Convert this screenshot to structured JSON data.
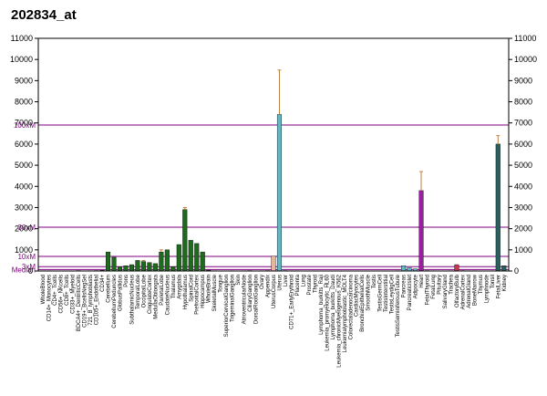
{
  "title": "202834_at",
  "chart_data": {
    "type": "bar",
    "ylim": [
      0,
      11000
    ],
    "yticks": [
      0,
      1000,
      2000,
      3000,
      4000,
      5000,
      6000,
      7000,
      8000,
      9000,
      10000,
      11000
    ],
    "ytick_labels_left": [
      "0",
      "1000",
      "2000",
      "3000",
      "4000",
      "5000",
      "6000",
      "7000",
      "8000",
      "9000",
      "10000",
      "11000"
    ],
    "ytick_labels_right": [
      "0",
      "1000",
      "2000",
      "3000",
      "4000",
      "5000",
      "6000",
      "7000",
      "8000",
      "9000",
      "10000",
      "11000"
    ],
    "reference_lines": [
      {
        "label": "100xM",
        "value": 6900
      },
      {
        "label": "30xM",
        "value": 2070
      },
      {
        "label": "10xM",
        "value": 690
      },
      {
        "label": "3xM",
        "value": 207
      },
      {
        "label": "Median",
        "value": 69
      }
    ],
    "categories": [
      "WholeBlood",
      "CD14+_Monocytes",
      "CD4+_Tcells",
      "CD56+_NKcells",
      "CD8+_Tcells",
      "CD33+_Myeloid",
      "BDCA4+_DentriticCells",
      "CD19+_BcellsNegSel",
      "721_B_lymphoblasts",
      "CD105+_Endothelial",
      "CD34+",
      "Cerebellum",
      "CerebellumPeduncles",
      "GlobusPallidus",
      "Pons",
      "SubthalamicNucleus",
      "TemporalLobe",
      "OccipitalLobe",
      "CingulateCortex",
      "MedullaOblongata",
      "ParietalLobe",
      "CaudateNucleus",
      "Thalamus",
      "Amygdala",
      "Hypothalamus",
      "SpinalCord",
      "PrefrontalCortex",
      "Hippocampus",
      "WholeBrain",
      "SkeletalMuscle",
      "Tongue",
      "SuperiorCervicalGanglion",
      "TrigeminalGanglion",
      "Skin",
      "AtrioventricularNode",
      "CiliaryGanglion",
      "DorsalRootGanglion",
      "Ovary",
      "Appendix",
      "UterusCorpus",
      "Uterus",
      "Liver",
      "CD71+_EarlyErythroid",
      "Placenta",
      "Lung",
      "Prostate",
      "Thyroid",
      "Lymphoma_burkitts_Raji",
      "Leukemia_promyelocytic_HL60",
      "Lymphoma_burkitts_Daudi",
      "Leukemia_chronicMyelogenous_K562",
      "Leukemialymphoblastic_MOLT4",
      "Colorectaladenocarcinoma",
      "CardiacMyocytes",
      "BronchialEpithelialCells",
      "SmoothMuscle",
      "Testis",
      "TestisGermCell",
      "TestisInterstitial",
      "TestisLeydigCell",
      "TestisSeminiferousTubule",
      "Pancreas",
      "PancreaticIslet",
      "Adipocyte",
      "Heart",
      "FetalThyroid",
      "FetalLung",
      "Pituitary",
      "SalivaryGland",
      "Trachea",
      "OlfactoryBulb",
      "AdrenalCortex",
      "AdrenalGland",
      "BoneMarrow",
      "Thymus",
      "Lymphnode",
      "Tonsil",
      "FetalLiver",
      "Kidney"
    ],
    "labels_shown": [
      "WholeBlood",
      "CD14+_Monocytes",
      "CD56+_NKcells",
      "CD8+_Tcells",
      "BDCA4+_DentriticCells",
      "CD19+_BcellsNegSel",
      "721_B_lymphoblasts",
      "CD105+_Endothelial",
      "CD34+",
      "CerebellumPeduncles",
      "Cerebellum",
      "GlobusPallidus",
      "Pons",
      "SubthalamicNucleus",
      "TemporalLobe",
      "OccipitalLobe",
      "CingulateCortex",
      "MedullaOblongata",
      "ParietalLobe",
      "CaudateNucleus",
      "Thalamus",
      "Amygdala",
      "Hypothalamus",
      "SpinalCord",
      "PrefrontalCortex",
      "Hippocampus",
      "WholeBrain",
      "SkeletalMuscle",
      "Tongue",
      "SuperiorCervicalGanglion",
      "TrigeminalGanglion",
      "Skin",
      "AtrioventricularNode",
      "CiliaryGanglion",
      "DorsalRootGanglion",
      "Ovary",
      "Appendix",
      "UterusCorpus",
      "Uterus",
      "Liver",
      "CD71+_EarlyErythroid",
      "Placenta",
      "Lung",
      "Prostate",
      "Thyroid",
      "Lymphoma_burkitts_Raji",
      "Leukemia_promyelocytic_HL60",
      "Lymphoma_burkitts_Daudi",
      "Leukemia_chronicMyelogenous_K562",
      "Leukemialymphoblastic_MOLT4",
      "Colorectaladenocarcinoma",
      "CardiacMyocytes",
      "BronchialEpithelialCells",
      "SmoothMuscle",
      "Testis",
      "TestisGermCell",
      "TestisInterstitial",
      "TestisLeydigCell",
      "TestisSeminiferousTubule",
      "Pancreas",
      "PancreaticIslet",
      "Adipocyte",
      "Heart",
      "FetalThyroid",
      "FetalLung",
      "Pituitary",
      "SalivaryGland",
      "Trachea",
      "OlfactoryBulb",
      "AdrenalCortex",
      "AdrenalGland",
      "BoneMarrow",
      "Thymus",
      "Lymphnode",
      "Tonsil",
      "FetalLiver",
      "Kidney"
    ],
    "values": [
      15,
      15,
      10,
      10,
      10,
      10,
      20,
      12,
      15,
      20,
      30,
      900,
      650,
      200,
      250,
      300,
      500,
      450,
      400,
      350,
      900,
      1000,
      200,
      1250,
      2900,
      1450,
      1300,
      900,
      40,
      15,
      10,
      10,
      15,
      10,
      15,
      20,
      12,
      15,
      20,
      700,
      7400,
      20,
      15,
      15,
      10,
      10,
      10,
      10,
      10,
      10,
      10,
      10,
      10,
      10,
      10,
      10,
      10,
      10,
      10,
      10,
      15,
      250,
      150,
      100,
      3800,
      20,
      15,
      10,
      10,
      15,
      300,
      20,
      15,
      15,
      10,
      10,
      15,
      6000,
      250
    ],
    "errors": [
      0,
      0,
      0,
      0,
      0,
      0,
      0,
      0,
      0,
      0,
      0,
      0,
      0,
      0,
      0,
      0,
      0,
      50,
      0,
      0,
      100,
      0,
      0,
      0,
      100,
      0,
      0,
      0,
      0,
      0,
      0,
      0,
      0,
      0,
      0,
      0,
      0,
      0,
      0,
      0,
      2100,
      0,
      0,
      0,
      0,
      0,
      0,
      0,
      0,
      0,
      0,
      0,
      0,
      0,
      0,
      0,
      0,
      0,
      0,
      0,
      0,
      0,
      0,
      0,
      900,
      0,
      0,
      0,
      0,
      0,
      0,
      0,
      0,
      0,
      0,
      0,
      0,
      400,
      0
    ],
    "colors": [
      "#1e6b1e",
      "#1e6b1e",
      "#1e6b1e",
      "#1e6b1e",
      "#1e6b1e",
      "#1e6b1e",
      "#1e6b1e",
      "#1e6b1e",
      "#1e6b1e",
      "#1e6b1e",
      "#1e6b1e",
      "#1e6b1e",
      "#1e6b1e",
      "#1e6b1e",
      "#1e6b1e",
      "#1e6b1e",
      "#1e6b1e",
      "#1e6b1e",
      "#1e6b1e",
      "#1e6b1e",
      "#1e6b1e",
      "#1e6b1e",
      "#1e6b1e",
      "#1e6b1e",
      "#1e6b1e",
      "#1e6b1e",
      "#1e6b1e",
      "#1e6b1e",
      "#1e6b1e",
      "#1e6b1e",
      "#1e6b1e",
      "#1e6b1e",
      "#1e6b1e",
      "#1e6b1e",
      "#1e6b1e",
      "#1e6b1e",
      "#1e6b1e",
      "#1e6b1e",
      "#1e6b1e",
      "#e8b49a",
      "#5fb8c8",
      "#5fb8c8",
      "#5fb8c8",
      "#5fb8c8",
      "#5fb8c8",
      "#5fb8c8",
      "#5fb8c8",
      "#5fb8c8",
      "#5fb8c8",
      "#5fb8c8",
      "#5fb8c8",
      "#5fb8c8",
      "#5fb8c8",
      "#5fb8c8",
      "#5fb8c8",
      "#5fb8c8",
      "#5fb8c8",
      "#5fb8c8",
      "#5fb8c8",
      "#5fb8c8",
      "#5fb8c8",
      "#5fb8c8",
      "#5fb8c8",
      "#5fb8c8",
      "#9a1fa0",
      "#9a1fa0",
      "#9a1fa0",
      "#9a1fa0",
      "#9a1fa0",
      "#9a1fa0",
      "#c0394a",
      "#c0394a",
      "#c0394a",
      "#c0394a",
      "#c0394a",
      "#c0394a",
      "#c0394a",
      "#2a5f5f",
      "#2a5f5f"
    ],
    "axis_color": "#000000",
    "reference_color": "#800080",
    "error_color": "#c08040",
    "grid": false
  }
}
